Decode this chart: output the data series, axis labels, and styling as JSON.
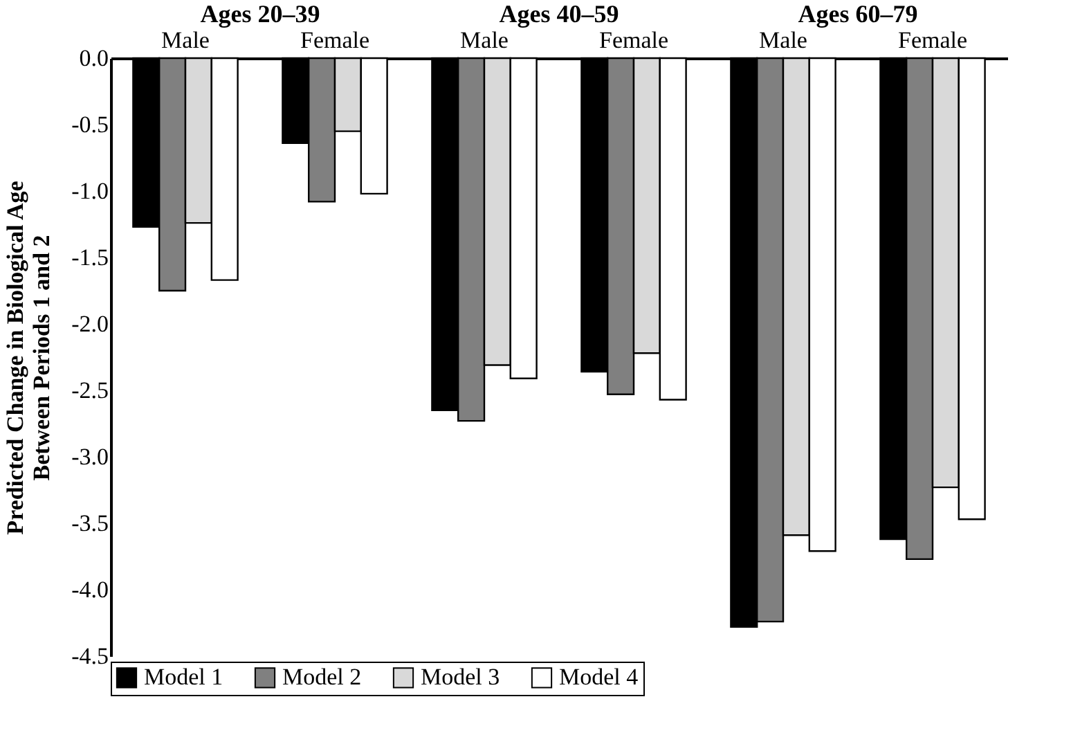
{
  "chart_data": {
    "type": "bar",
    "ylabel": "Predicted Change in Biological Age\nBetween Periods 1 and 2",
    "categories": [
      "Male",
      "Female",
      "Male",
      "Female",
      "Male",
      "Female"
    ],
    "annotations": [
      "Ages 20–39",
      "Ages 40–59",
      "Ages 60–79"
    ],
    "series": [
      {
        "name": "Model 1",
        "color": "#000000",
        "values": [
          -1.27,
          -0.64,
          -2.65,
          -2.36,
          -4.28,
          -3.62
        ]
      },
      {
        "name": "Model 2",
        "color": "#808080",
        "values": [
          -1.75,
          -1.08,
          -2.73,
          -2.53,
          -4.24,
          -3.77
        ]
      },
      {
        "name": "Model 3",
        "color": "#d9d9d9",
        "values": [
          -1.24,
          -0.55,
          -2.31,
          -2.22,
          -3.59,
          -3.23
        ]
      },
      {
        "name": "Model 4",
        "color": "#ffffff",
        "values": [
          -1.67,
          -1.02,
          -2.41,
          -2.57,
          -3.71,
          -3.47
        ]
      }
    ],
    "ylim": [
      -4.5,
      0
    ],
    "yticks": [
      {
        "value": 0,
        "label": "0.0"
      },
      {
        "value": -0.5,
        "label": "-0.5"
      },
      {
        "value": -1,
        "label": "-1.0"
      },
      {
        "value": -1.5,
        "label": "-1.5"
      },
      {
        "value": -2,
        "label": "-2.0"
      },
      {
        "value": -2.5,
        "label": "-2.5"
      },
      {
        "value": -3,
        "label": "-3.0"
      },
      {
        "value": -3.5,
        "label": "-3.5"
      },
      {
        "value": -4,
        "label": "-4.0"
      },
      {
        "value": -4.5,
        "label": "-4.5"
      }
    ],
    "legend": "bottom",
    "grid": false
  }
}
